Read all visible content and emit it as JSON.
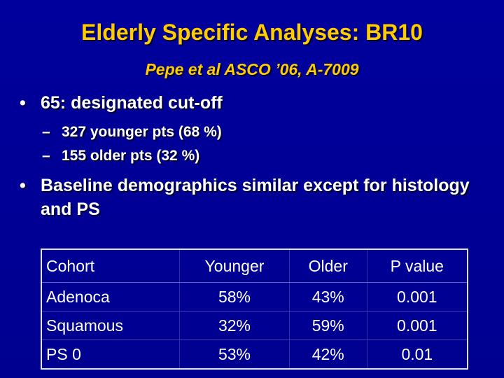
{
  "header": {
    "title": "Elderly Specific Analyses: BR10",
    "subtitle": "Pepe et al ASCO ’06, A-7009"
  },
  "bullets": [
    {
      "text": "65:  designated cut-off",
      "subbullets": [
        "327 younger pts (68 %)",
        "155 older pts (32 %)"
      ]
    },
    {
      "text": "Baseline demographics similar except for histology and PS",
      "subbullets": []
    }
  ],
  "table": {
    "header": [
      "Cohort",
      "Younger",
      "Older",
      "P value"
    ],
    "rows": [
      [
        "Adenoca",
        "58%",
        "43%",
        "0.001"
      ],
      [
        "Squamous",
        "32%",
        "59%",
        "0.001"
      ],
      [
        "PS 0",
        "53%",
        "42%",
        "0.01"
      ]
    ]
  }
}
